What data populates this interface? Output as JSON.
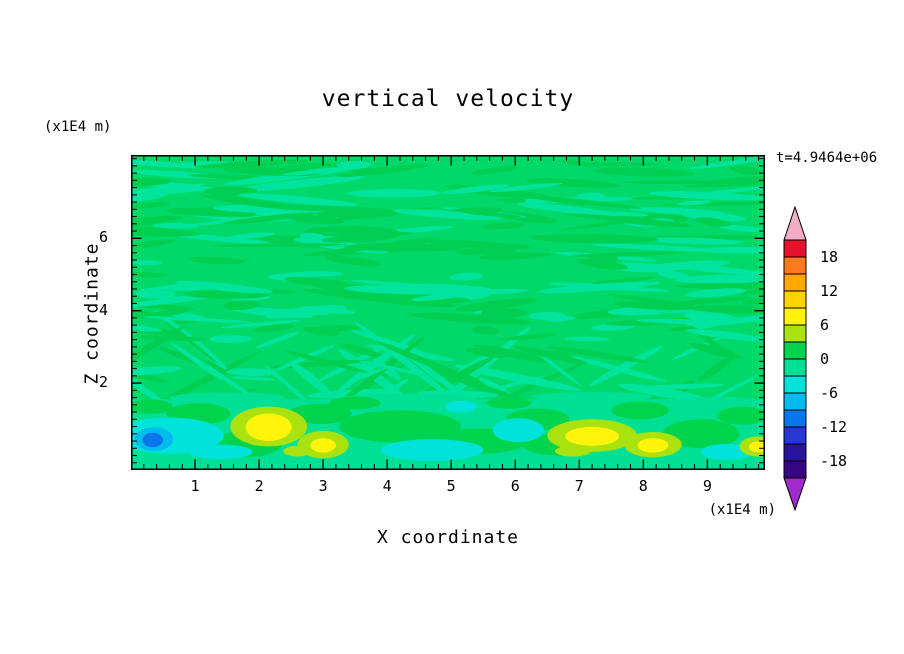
{
  "chart_data": {
    "type": "contour",
    "title": "vertical velocity",
    "timestamp": "t=4.9464e+06",
    "xlabel": "X coordinate",
    "ylabel": "Z coordinate",
    "x_unit": "(x1E4 m)",
    "y_unit": "(x1E4 m)",
    "xlim": [
      0,
      9.9
    ],
    "zlim": [
      -0.4,
      8.3
    ],
    "x_ticks": [
      "1",
      "2",
      "3",
      "4",
      "5",
      "6",
      "7",
      "8",
      "9"
    ],
    "x_tick_values": [
      1,
      2,
      3,
      4,
      5,
      6,
      7,
      8,
      9
    ],
    "y_ticks": [
      "2",
      "4",
      "6"
    ],
    "y_tick_values": [
      2,
      4,
      6
    ],
    "minor_tick_step": 0.2,
    "grid": false,
    "colorbar": {
      "value_max": 21,
      "value_min": -21,
      "band_step": 3,
      "labels": [
        "18",
        "12",
        "6",
        "0",
        "-6",
        "-12",
        "-18"
      ],
      "band_colors_top_to_bottom": [
        "#E8112D",
        "#FF7A1E",
        "#FFA800",
        "#FFD200",
        "#FFF40A",
        "#A9E20E",
        "#00D44F",
        "#00E095",
        "#00E3DA",
        "#00BCEE",
        "#0B76EC",
        "#2737D8",
        "#2A149B",
        "#36077E"
      ],
      "over_arrow_color": "#F2ACC6",
      "under_arrow_color": "#A02ACA"
    },
    "field": {
      "description": "mostly near-zero vertical velocity: mottled green streaks above z=1.6, smoother boundary layer below with positive (yellow) and negative (cyan/blue) cells",
      "background_color": "#00D96A",
      "bottom_band_color": "#00E095",
      "bottom_band_top_z": 1.55,
      "streak_colors": [
        "#00E49E",
        "#00CF52"
      ],
      "streak_count": 260,
      "seed": 13,
      "blobs": [
        {
          "x": 1.5,
          "z": 1.6,
          "rx": 0.9,
          "rz": 0.14,
          "c": "#00E095"
        },
        {
          "x": 4.3,
          "z": 1.55,
          "rx": 1.1,
          "rz": 0.16,
          "c": "#00E095"
        },
        {
          "x": 7.2,
          "z": 1.62,
          "rx": 0.95,
          "rz": 0.13,
          "c": "#00E095"
        },
        {
          "x": 9.2,
          "z": 1.5,
          "rx": 0.6,
          "rz": 0.12,
          "c": "#00E095"
        },
        {
          "x": 0.3,
          "z": 1.35,
          "rx": 0.35,
          "rz": 0.2,
          "c": "#00D44F"
        },
        {
          "x": 1.05,
          "z": 1.15,
          "rx": 0.5,
          "rz": 0.3,
          "c": "#00D44F"
        },
        {
          "x": 1.75,
          "z": 0.3,
          "rx": 0.6,
          "rz": 0.35,
          "c": "#00D44F"
        },
        {
          "x": 2.95,
          "z": 1.15,
          "rx": 0.5,
          "rz": 0.28,
          "c": "#00D44F"
        },
        {
          "x": 4.2,
          "z": 0.8,
          "rx": 0.95,
          "rz": 0.45,
          "c": "#00D44F"
        },
        {
          "x": 5.45,
          "z": 0.4,
          "rx": 0.75,
          "rz": 0.35,
          "c": "#00D44F"
        },
        {
          "x": 6.35,
          "z": 1.0,
          "rx": 0.5,
          "rz": 0.3,
          "c": "#00D44F"
        },
        {
          "x": 6.7,
          "z": 0.3,
          "rx": 0.6,
          "rz": 0.3,
          "c": "#00D44F"
        },
        {
          "x": 7.95,
          "z": 1.25,
          "rx": 0.45,
          "rz": 0.25,
          "c": "#00D44F"
        },
        {
          "x": 8.9,
          "z": 0.6,
          "rx": 0.6,
          "rz": 0.4,
          "c": "#00D44F"
        },
        {
          "x": 9.55,
          "z": 1.1,
          "rx": 0.4,
          "rz": 0.25,
          "c": "#00D44F"
        },
        {
          "x": 3.5,
          "z": 1.45,
          "rx": 0.4,
          "rz": 0.18,
          "c": "#00D44F"
        },
        {
          "x": 5.9,
          "z": 1.45,
          "rx": 0.35,
          "rz": 0.16,
          "c": "#00D44F"
        },
        {
          "x": 0.6,
          "z": 0.55,
          "rx": 0.85,
          "rz": 0.5,
          "c": "#00E3DA"
        },
        {
          "x": 1.4,
          "z": 0.1,
          "rx": 0.5,
          "rz": 0.2,
          "c": "#00E3DA"
        },
        {
          "x": 4.7,
          "z": 0.15,
          "rx": 0.8,
          "rz": 0.3,
          "c": "#00E3DA"
        },
        {
          "x": 6.05,
          "z": 0.7,
          "rx": 0.4,
          "rz": 0.33,
          "c": "#00E3DA"
        },
        {
          "x": 5.15,
          "z": 1.35,
          "rx": 0.25,
          "rz": 0.16,
          "c": "#00E3DA"
        },
        {
          "x": 9.3,
          "z": 0.1,
          "rx": 0.4,
          "rz": 0.22,
          "c": "#00E3DA"
        },
        {
          "x": 0.36,
          "z": 0.45,
          "rx": 0.3,
          "rz": 0.33,
          "c": "#00BCEE"
        },
        {
          "x": 0.34,
          "z": 0.43,
          "rx": 0.16,
          "rz": 0.2,
          "c": "#0B76EC"
        },
        {
          "x": 2.15,
          "z": 0.8,
          "rx": 0.6,
          "rz": 0.55,
          "c": "#A9E20E"
        },
        {
          "x": 2.15,
          "z": 0.78,
          "rx": 0.36,
          "rz": 0.38,
          "c": "#FFF40A"
        },
        {
          "x": 3.0,
          "z": 0.3,
          "rx": 0.4,
          "rz": 0.38,
          "c": "#A9E20E"
        },
        {
          "x": 3.0,
          "z": 0.28,
          "rx": 0.2,
          "rz": 0.2,
          "c": "#FFF40A"
        },
        {
          "x": 7.2,
          "z": 0.55,
          "rx": 0.7,
          "rz": 0.45,
          "c": "#A9E20E"
        },
        {
          "x": 7.2,
          "z": 0.53,
          "rx": 0.42,
          "rz": 0.26,
          "c": "#FFF40A"
        },
        {
          "x": 8.15,
          "z": 0.3,
          "rx": 0.45,
          "rz": 0.35,
          "c": "#A9E20E"
        },
        {
          "x": 8.15,
          "z": 0.28,
          "rx": 0.24,
          "rz": 0.2,
          "c": "#FFF40A"
        },
        {
          "x": 9.8,
          "z": 0.25,
          "rx": 0.3,
          "rz": 0.28,
          "c": "#A9E20E"
        },
        {
          "x": 9.8,
          "z": 0.24,
          "rx": 0.15,
          "rz": 0.15,
          "c": "#FFF40A"
        },
        {
          "x": 2.6,
          "z": 0.12,
          "rx": 0.22,
          "rz": 0.15,
          "c": "#A9E20E"
        },
        {
          "x": 6.9,
          "z": 0.12,
          "rx": 0.28,
          "rz": 0.15,
          "c": "#A9E20E"
        }
      ]
    }
  }
}
